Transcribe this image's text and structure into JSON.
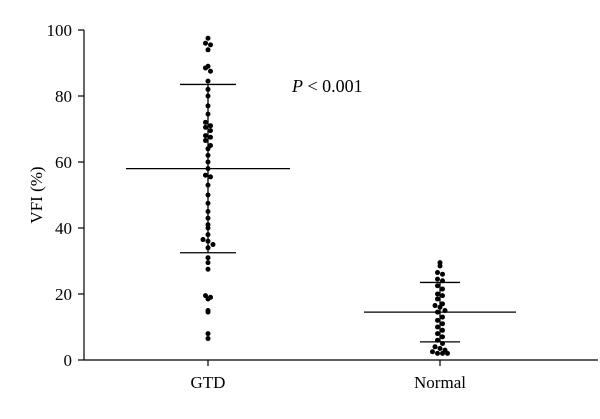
{
  "chart_data": {
    "type": "scatter",
    "ylabel": "VFI (%)",
    "ylim": [
      0,
      100
    ],
    "yticks": [
      0,
      20,
      40,
      60,
      80,
      100
    ],
    "categories": [
      "GTD",
      "Normal"
    ],
    "annotation": {
      "p": "P",
      "rest": " < 0.001"
    },
    "series": [
      {
        "category": "GTD",
        "mean": 58,
        "sd_upper": 83.5,
        "sd_lower": 32.5,
        "values": [
          97.5,
          96,
          95.5,
          94,
          89,
          88.5,
          87.5,
          84.5,
          82,
          80,
          77,
          74.5,
          72,
          71,
          70.5,
          69.5,
          68,
          67.5,
          66.5,
          65,
          64,
          62,
          60,
          58,
          56,
          55.5,
          53,
          50,
          47.5,
          45,
          43,
          41,
          40,
          38,
          36.5,
          36,
          35,
          34,
          31,
          29.5,
          27.5,
          19.5,
          19,
          18.5,
          15,
          14.5,
          8,
          6.5
        ]
      },
      {
        "category": "Normal",
        "mean": 14.5,
        "sd_upper": 23.5,
        "sd_lower": 5.5,
        "values": [
          29.5,
          28.5,
          26.5,
          26,
          24.5,
          24,
          22.5,
          21.5,
          20,
          19.5,
          18.5,
          17,
          16.5,
          16,
          15,
          14.5,
          13,
          12,
          11,
          10,
          9,
          8,
          7,
          6,
          5,
          4,
          3.5,
          3,
          2.5,
          2,
          2,
          2
        ]
      }
    ]
  }
}
